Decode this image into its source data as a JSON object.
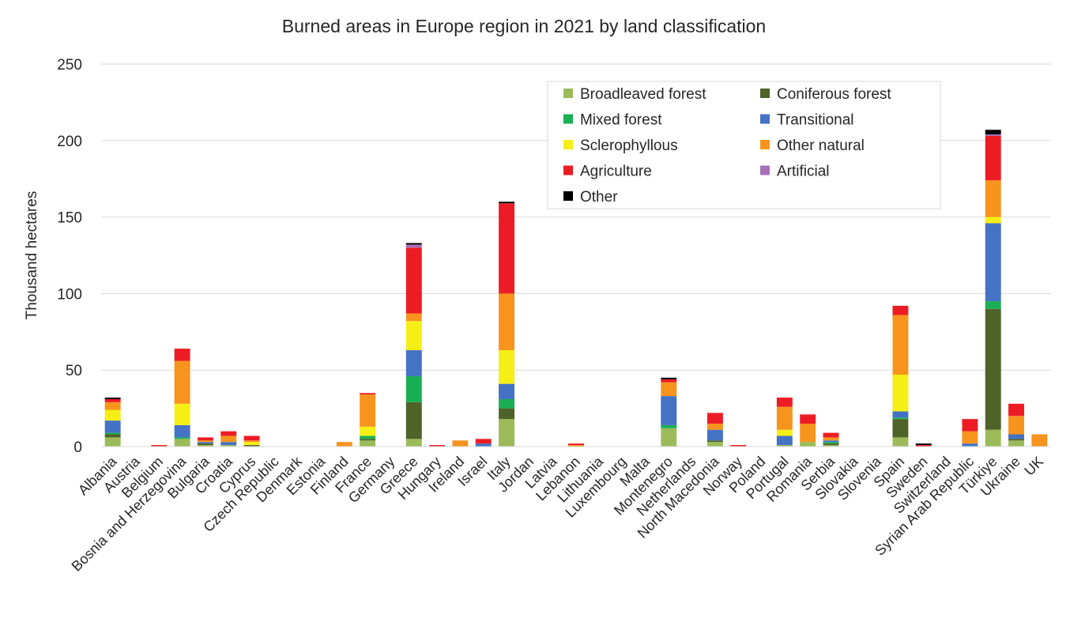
{
  "chart_data": {
    "type": "bar",
    "stacked": true,
    "title": "Burned areas in Europe region in 2021 by land classification",
    "xlabel": "",
    "ylabel": "Thousand hectares",
    "ylim": [
      0,
      250
    ],
    "yticks": [
      0,
      50,
      100,
      150,
      200,
      250
    ],
    "grid": true,
    "legend_position": "top-right",
    "categories": [
      "Albania",
      "Austria",
      "Belgium",
      "Bosnia and Herzegovina",
      "Bulgaria",
      "Croatia",
      "Cyprus",
      "Czech Republic",
      "Denmark",
      "Estonia",
      "Finland",
      "France",
      "Germany",
      "Greece",
      "Hungary",
      "Ireland",
      "Israel",
      "Italy",
      "Jordan",
      "Latvia",
      "Lebanon",
      "Lithuania",
      "Luxembourg",
      "Malta",
      "Montenegro",
      "Netherlands",
      "North Macedonia",
      "Norway",
      "Poland",
      "Portugal",
      "Romania",
      "Serbia",
      "Slovakia",
      "Slovenia",
      "Spain",
      "Sweden",
      "Switzerland",
      "Syrian Arab Republic",
      "Türkiye",
      "Ukraine",
      "UK"
    ],
    "series": [
      {
        "name": "Broadleaved forest",
        "color": "#9bbb59",
        "values": [
          6,
          0,
          0,
          5,
          1,
          1,
          0,
          0,
          0,
          0,
          0,
          4,
          0,
          5,
          0,
          0,
          0,
          18,
          0,
          0,
          0,
          0,
          0,
          0,
          12,
          0,
          3,
          0,
          0,
          1,
          3,
          1,
          0,
          0,
          6,
          0,
          0,
          0,
          11,
          4,
          0
        ]
      },
      {
        "name": "Coniferous forest",
        "color": "#4f6228",
        "values": [
          2,
          0,
          0,
          0,
          1,
          0,
          1,
          0,
          0,
          0,
          0,
          1,
          0,
          24,
          0,
          0,
          0,
          7,
          0,
          0,
          0,
          0,
          0,
          0,
          0,
          0,
          1,
          0,
          0,
          0,
          0,
          1,
          0,
          0,
          12,
          0,
          0,
          0,
          79,
          1,
          0
        ]
      },
      {
        "name": "Mixed forest",
        "color": "#1aaf54",
        "values": [
          1,
          0,
          0,
          1,
          0,
          0,
          0,
          0,
          0,
          0,
          0,
          2,
          0,
          17,
          0,
          0,
          0,
          6,
          0,
          0,
          0,
          0,
          0,
          0,
          2,
          0,
          0,
          0,
          0,
          0,
          0,
          1,
          0,
          0,
          1,
          0,
          0,
          0,
          5,
          0,
          0
        ]
      },
      {
        "name": "Transitional",
        "color": "#4472c4",
        "values": [
          8,
          0,
          0,
          8,
          1,
          2,
          0,
          0,
          0,
          0,
          0,
          0,
          0,
          17,
          0,
          0,
          2,
          10,
          0,
          0,
          0,
          0,
          0,
          0,
          19,
          0,
          7,
          0,
          0,
          6,
          0,
          1,
          0,
          0,
          4,
          0,
          0,
          2,
          51,
          3,
          0
        ]
      },
      {
        "name": "Sclerophyllous",
        "color": "#f5ef15",
        "values": [
          7,
          0,
          0,
          14,
          0,
          0,
          2,
          0,
          0,
          0,
          0,
          6,
          0,
          19,
          0,
          0,
          0,
          22,
          0,
          0,
          0,
          0,
          0,
          0,
          0,
          0,
          0,
          0,
          0,
          4,
          0,
          0,
          0,
          0,
          24,
          0,
          0,
          0,
          4,
          0,
          0
        ]
      },
      {
        "name": "Other natural",
        "color": "#f7941d",
        "values": [
          5,
          0,
          0,
          28,
          1,
          4,
          1,
          0,
          0,
          0,
          3,
          21,
          0,
          5,
          0,
          4,
          0,
          37,
          0,
          0,
          1,
          0,
          0,
          0,
          9,
          0,
          4,
          0,
          0,
          15,
          12,
          2,
          0,
          0,
          39,
          0,
          0,
          8,
          24,
          12,
          8
        ]
      },
      {
        "name": "Agriculture",
        "color": "#ed1c24",
        "values": [
          2,
          0,
          1,
          8,
          2,
          3,
          3,
          0,
          0,
          0,
          0,
          1,
          0,
          43,
          1,
          0,
          3,
          59,
          0,
          0,
          1,
          0,
          0,
          0,
          2,
          0,
          7,
          1,
          0,
          6,
          6,
          3,
          0,
          0,
          6,
          1,
          0,
          8,
          29,
          8,
          0
        ]
      },
      {
        "name": "Artificial",
        "color": "#a970b8",
        "values": [
          0,
          0,
          0,
          0,
          0,
          0,
          0,
          0,
          0,
          0,
          0,
          0,
          0,
          2,
          0,
          0,
          0,
          0,
          0,
          0,
          0,
          0,
          0,
          0,
          0,
          0,
          0,
          0,
          0,
          0,
          0,
          0,
          0,
          0,
          0,
          0,
          0,
          0,
          1,
          0,
          0
        ]
      },
      {
        "name": "Other",
        "color": "#000000",
        "values": [
          1,
          0,
          0,
          0,
          0,
          0,
          0,
          0,
          0,
          0,
          0,
          0,
          0,
          1,
          0,
          0,
          0,
          1,
          0,
          0,
          0,
          0,
          0,
          0,
          1,
          0,
          0,
          0,
          0,
          0,
          0,
          0,
          0,
          0,
          0,
          1,
          0,
          0,
          3,
          0,
          0
        ]
      }
    ]
  }
}
